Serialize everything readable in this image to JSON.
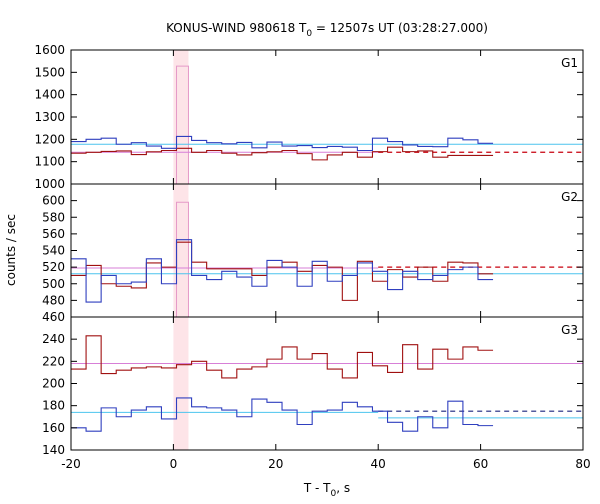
{
  "chart_data": {
    "type": "line",
    "title": "KONUS-WIND 980618 T",
    "title_sub": "0",
    "title_rest": " = 12507s UT (03:28:27.000)",
    "xlabel_main": "T - T",
    "xlabel_sub": "0",
    "xlabel_end": ", s",
    "ylabel": "counts / sec",
    "xlim": [
      -20,
      80
    ],
    "x_ticks": [
      -20,
      0,
      20,
      40,
      60,
      80
    ],
    "highlight_interval": [
      0,
      2.944
    ],
    "highlight_color": "#fde4e8",
    "colors": {
      "red": "#a01010",
      "blue": "#2f3fbf",
      "red_fit": "#d77fd7",
      "blue_fit": "#4cc4ee",
      "dashed_red": "#c8000f",
      "dashed_blue": "#1a237e",
      "pink_peak": "#e59ac8"
    },
    "panels": [
      {
        "label": "G1",
        "ylim": [
          1000,
          1600
        ],
        "y_ticks": [
          1000,
          1100,
          1200,
          1300,
          1400,
          1500,
          1600
        ],
        "series": [
          {
            "color": "red",
            "edges": [
              -20,
              -17.056,
              -14.112,
              -11.168,
              -8.224,
              -5.28,
              -2.336,
              0.608,
              3.552,
              6.496,
              9.44,
              12.384,
              15.328,
              18.272,
              21.216,
              24.16,
              27.104,
              30.048,
              32.992,
              35.936,
              38.88,
              41.824,
              44.768,
              47.712,
              50.656,
              53.6,
              56.544,
              59.488,
              62.432
            ],
            "values": [
              1138,
              1142,
              1146,
              1148,
              1132,
              1144,
              1150,
              1160,
              1142,
              1150,
              1138,
              1130,
              1140,
              1144,
              1150,
              1136,
              1108,
              1130,
              1142,
              1120,
              1145,
              1165,
              1145,
              1148,
              1120,
              1128,
              1128,
              1128
            ]
          },
          {
            "color": "blue",
            "edges": [
              -20,
              -17.056,
              -14.112,
              -11.168,
              -8.224,
              -5.28,
              -2.336,
              0.608,
              3.552,
              6.496,
              9.44,
              12.384,
              15.328,
              18.272,
              21.216,
              24.16,
              27.104,
              30.048,
              32.992,
              35.936,
              38.88,
              41.824,
              44.768,
              47.712,
              50.656,
              53.6,
              56.544,
              59.488,
              62.432
            ],
            "values": [
              1190,
              1200,
              1205,
              1178,
              1185,
              1170,
              1160,
              1213,
              1195,
              1185,
              1180,
              1186,
              1162,
              1188,
              1170,
              1172,
              1163,
              1168,
              1165,
              1150,
              1205,
              1190,
              1175,
              1168,
              1167,
              1205,
              1198,
              1182
            ]
          }
        ],
        "fits": [
          {
            "color": "blue_fit",
            "y": 1178,
            "x_end": 80,
            "style": "solid"
          },
          {
            "color": "red_fit",
            "y": 1142,
            "x_end": 40,
            "style": "solid"
          },
          {
            "color": "dashed_red",
            "y": 1142,
            "x_start": 40,
            "x_end": 80,
            "style": "dashed"
          }
        ],
        "peak": {
          "color": "pink_peak",
          "x0": 0.608,
          "x1": 2.944,
          "y": 1528
        }
      },
      {
        "label": "G2",
        "ylim": [
          460,
          620
        ],
        "y_ticks": [
          460,
          480,
          500,
          520,
          540,
          560,
          580,
          600
        ],
        "series": [
          {
            "color": "red",
            "edges": [
              -20,
              -17.056,
              -14.112,
              -11.168,
              -8.224,
              -5.28,
              -2.336,
              0.608,
              3.552,
              6.496,
              9.44,
              12.384,
              15.328,
              18.272,
              21.216,
              24.16,
              27.104,
              30.048,
              32.992,
              35.936,
              38.88,
              41.824,
              44.768,
              47.712,
              50.656,
              53.6,
              56.544,
              59.488,
              62.432
            ],
            "values": [
              510,
              522,
              500,
              497,
              495,
              525,
              520,
              550,
              526,
              518,
              518,
              518,
              510,
              520,
              526,
              515,
              522,
              520,
              480,
              527,
              503,
              517,
              508,
              520,
              503,
              526,
              525,
              512
            ]
          },
          {
            "color": "blue",
            "edges": [
              -20,
              -17.056,
              -14.112,
              -11.168,
              -8.224,
              -5.28,
              -2.336,
              0.608,
              3.552,
              6.496,
              9.44,
              12.384,
              15.328,
              18.272,
              21.216,
              24.16,
              27.104,
              30.048,
              32.992,
              35.936,
              38.88,
              41.824,
              44.768,
              47.712,
              50.656,
              53.6,
              56.544,
              59.488,
              62.432
            ],
            "values": [
              530,
              478,
              510,
              500,
              502,
              530,
              500,
              553,
              510,
              505,
              515,
              508,
              497,
              528,
              520,
              497,
              527,
              503,
              510,
              525,
              515,
              493,
              515,
              505,
              510,
              517,
              520,
              505
            ]
          }
        ],
        "fits": [
          {
            "color": "red_fit",
            "y": 519,
            "x_end": 40,
            "style": "solid"
          },
          {
            "color": "blue_fit",
            "y": 512,
            "x_end": 80,
            "style": "solid"
          },
          {
            "color": "dashed_red",
            "y": 520,
            "x_start": 40,
            "x_end": 80,
            "style": "dashed"
          }
        ],
        "peak": {
          "color": "pink_peak",
          "x0": 0.608,
          "x1": 2.944,
          "y": 598
        }
      },
      {
        "label": "G3",
        "ylim": [
          140,
          260
        ],
        "y_ticks": [
          140,
          160,
          180,
          200,
          220,
          240
        ],
        "series": [
          {
            "color": "red",
            "edges": [
              -20,
              -17.056,
              -14.112,
              -11.168,
              -8.224,
              -5.28,
              -2.336,
              0.608,
              3.552,
              6.496,
              9.44,
              12.384,
              15.328,
              18.272,
              21.216,
              24.16,
              27.104,
              30.048,
              32.992,
              35.936,
              38.88,
              41.824,
              44.768,
              47.712,
              50.656,
              53.6,
              56.544,
              59.488,
              62.432
            ],
            "values": [
              213,
              243,
              209,
              212,
              214,
              215,
              214,
              217,
              220,
              212,
              205,
              213,
              215,
              222,
              233,
              222,
              227,
              213,
              205,
              228,
              216,
              210,
              235,
              213,
              231,
              222,
              233,
              230
            ]
          },
          {
            "color": "blue",
            "edges": [
              -20,
              -17.056,
              -14.112,
              -11.168,
              -8.224,
              -5.28,
              -2.336,
              0.608,
              3.552,
              6.496,
              9.44,
              12.384,
              15.328,
              18.272,
              21.216,
              24.16,
              27.104,
              30.048,
              32.992,
              35.936,
              38.88,
              41.824,
              44.768,
              47.712,
              50.656,
              53.6,
              56.544,
              59.488,
              62.432
            ],
            "values": [
              160,
              157,
              178,
              170,
              176,
              179,
              168,
              187,
              179,
              178,
              176,
              170,
              186,
              183,
              176,
              163,
              175,
              176,
              183,
              179,
              175,
              165,
              157,
              170,
              160,
              184,
              163,
              162
            ]
          }
        ],
        "fits": [
          {
            "color": "red_fit",
            "y": 218,
            "x_end": 80,
            "style": "solid"
          },
          {
            "color": "blue_fit",
            "y": 174,
            "x_end": 40,
            "style": "solid"
          },
          {
            "color": "blue_fit",
            "y": 169,
            "x_start": 40,
            "x_end": 80,
            "style": "solid"
          },
          {
            "color": "dashed_blue",
            "y": 175,
            "x_start": 40,
            "x_end": 80,
            "style": "dashed"
          }
        ]
      }
    ]
  }
}
